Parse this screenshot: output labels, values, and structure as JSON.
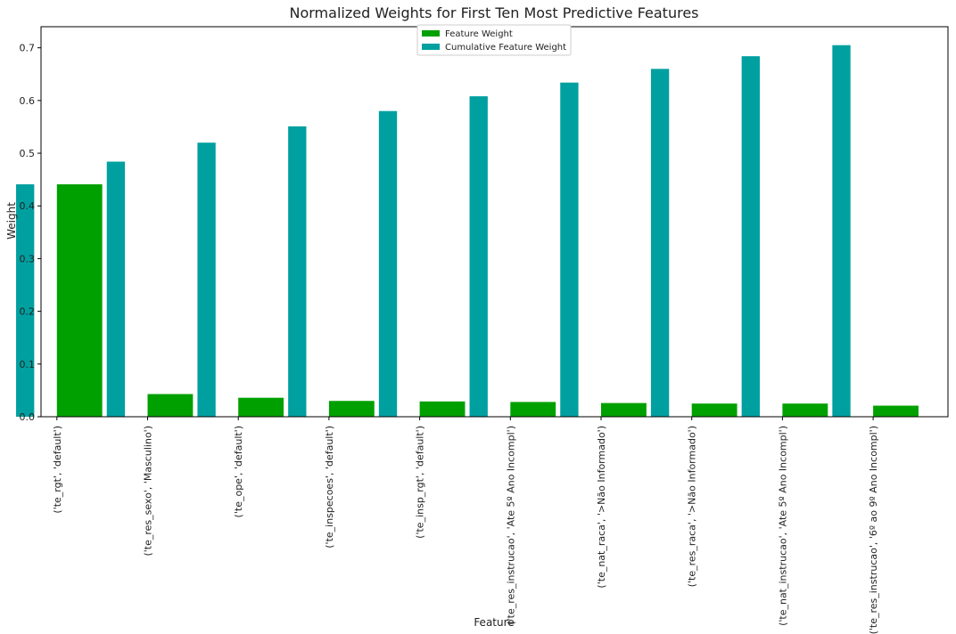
{
  "chart_data": {
    "type": "bar",
    "title": "Normalized Weights for First Ten Most Predictive Features",
    "xlabel": "Feature",
    "ylabel": "Weight",
    "ylim": [
      0,
      0.74
    ],
    "yticks": [
      0.0,
      0.1,
      0.2,
      0.3,
      0.4,
      0.5,
      0.6,
      0.7
    ],
    "ytick_labels": [
      "0.0",
      "0.1",
      "0.2",
      "0.3",
      "0.4",
      "0.5",
      "0.6",
      "0.7"
    ],
    "grid": false,
    "legend_position": "top-center",
    "categories": [
      "('te_rgt', 'default')",
      "('te_res_sexo', 'Masculino')",
      "('te_ope', 'default')",
      "('te_inspecoes', 'default')",
      "('te_insp_rgt', 'default')",
      "('te_res_instrucao', 'Ate 5º Ano Incompl')",
      "('te_nat_raca', '>Não Informado')",
      "('te_res_raca', '>Não Informado')",
      "('te_nat_instrucao', 'Ate 5º Ano Incompl')",
      "('te_res_instrucao', '6º ao 9º Ano Incompl')"
    ],
    "series": [
      {
        "name": "Feature Weight",
        "color": "#00a000",
        "values": [
          0.441,
          0.043,
          0.036,
          0.03,
          0.029,
          0.028,
          0.026,
          0.025,
          0.025,
          0.021
        ]
      },
      {
        "name": "Cumulative Feature Weight",
        "color": "#00a0a0",
        "values": [
          0.441,
          0.484,
          0.52,
          0.551,
          0.58,
          0.608,
          0.634,
          0.66,
          0.684,
          0.705
        ]
      }
    ]
  }
}
